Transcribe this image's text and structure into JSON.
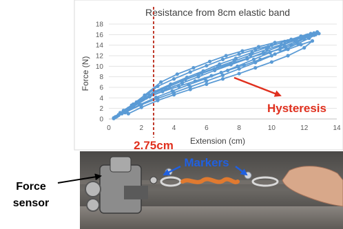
{
  "chart_data": {
    "type": "scatter",
    "title": "Resistance from 8cm elastic band",
    "xlabel": "Extension (cm)",
    "ylabel": "Force (N)",
    "xlim": [
      0,
      14
    ],
    "ylim": [
      0,
      18
    ],
    "xticks": [
      0,
      2,
      4,
      6,
      8,
      10,
      12,
      14
    ],
    "yticks": [
      0,
      2,
      4,
      6,
      8,
      10,
      12,
      14,
      16,
      18
    ],
    "grid": "horizontal",
    "marker_color": "#5b9bd5",
    "reference_line": {
      "x": 2.75,
      "label": "2.75cm",
      "color": "#c0392b"
    },
    "series": [
      {
        "x": [
          0.3,
          0.8,
          1.5,
          2.5,
          3.5,
          4.5,
          5.5,
          6.5,
          7.5,
          8.5,
          9.5,
          10.5,
          11.5,
          12.2,
          12.6,
          12.0,
          11.2,
          10.5,
          9.5,
          8.5,
          7.5,
          6.5,
          5.5,
          4.5,
          3.5,
          2.5,
          1.5,
          0.7,
          0.3
        ],
        "y": [
          0.1,
          1.0,
          2.3,
          4.2,
          5.6,
          6.8,
          8.0,
          9.2,
          10.3,
          11.4,
          12.6,
          13.8,
          15.0,
          15.9,
          16.3,
          15.2,
          14.0,
          13.2,
          12.4,
          11.5,
          10.5,
          9.5,
          8.4,
          7.2,
          5.9,
          4.5,
          2.8,
          1.2,
          0.2
        ]
      },
      {
        "x": [
          0.4,
          1.0,
          1.8,
          2.8,
          3.8,
          4.8,
          5.8,
          6.8,
          7.8,
          8.8,
          9.8,
          10.8,
          11.8,
          12.4,
          12.8,
          12.1,
          11.4,
          10.6,
          9.7,
          8.7,
          7.7,
          6.7,
          5.7,
          4.7,
          3.7,
          2.7,
          1.7,
          0.9,
          0.4
        ],
        "y": [
          0.3,
          1.5,
          3.0,
          5.2,
          6.6,
          7.9,
          9.1,
          10.4,
          11.5,
          12.6,
          13.7,
          14.7,
          15.7,
          16.2,
          16.5,
          15.8,
          14.9,
          14.1,
          13.2,
          12.1,
          11.0,
          9.9,
          8.7,
          7.5,
          6.2,
          4.8,
          3.2,
          1.6,
          0.4
        ]
      },
      {
        "x": [
          0.5,
          1.2,
          2.0,
          3.0,
          4.0,
          5.0,
          6.0,
          7.0,
          8.0,
          9.0,
          10.0,
          11.0,
          12.0,
          12.6,
          12.9,
          12.2,
          11.5,
          10.8,
          9.9,
          8.9,
          7.9,
          6.9,
          5.9,
          4.9,
          3.9,
          2.9,
          1.9,
          1.0,
          0.5
        ],
        "y": [
          0.5,
          2.0,
          3.7,
          6.2,
          7.6,
          8.9,
          10.1,
          11.3,
          12.3,
          13.2,
          14.0,
          14.8,
          15.4,
          15.9,
          16.2,
          15.6,
          14.7,
          13.8,
          12.6,
          11.3,
          10.0,
          8.8,
          7.6,
          6.5,
          5.3,
          4.1,
          2.7,
          1.2,
          0.5
        ]
      },
      {
        "x": [
          0.6,
          1.4,
          2.2,
          3.2,
          4.2,
          5.2,
          6.2,
          7.2,
          8.2,
          9.2,
          10.2,
          11.2,
          12.2,
          12.7,
          12.3,
          11.6,
          10.9,
          10.0,
          9.0,
          8.0,
          7.0,
          6.0,
          5.0,
          4.0,
          3.0,
          2.0,
          1.1,
          0.6
        ],
        "y": [
          0.8,
          2.6,
          4.5,
          7.0,
          8.5,
          9.7,
          10.9,
          12.0,
          12.9,
          13.7,
          14.5,
          15.1,
          15.7,
          16.0,
          15.3,
          14.3,
          13.3,
          12.0,
          10.7,
          9.5,
          8.3,
          7.2,
          6.1,
          5.0,
          3.9,
          2.7,
          1.4,
          0.7
        ]
      },
      {
        "x": [
          1.2,
          2.0,
          3.0,
          4.0,
          5.0,
          6.0,
          7.0,
          8.0,
          9.0,
          10.0,
          11.0,
          12.0,
          12.5,
          11.8,
          11.0,
          10.2,
          9.3,
          8.3,
          7.3,
          6.3,
          5.3,
          4.3,
          3.3,
          2.3,
          1.5,
          1.0
        ],
        "y": [
          1.0,
          2.2,
          3.5,
          4.6,
          5.6,
          6.6,
          7.6,
          8.6,
          9.7,
          10.8,
          12.0,
          13.5,
          14.8,
          14.1,
          13.2,
          12.3,
          11.3,
          10.2,
          9.2,
          8.2,
          7.2,
          6.2,
          5.2,
          4.0,
          2.6,
          1.6
        ]
      }
    ],
    "annotations": [
      {
        "text": "Hysteresis",
        "color": "#e0301e"
      }
    ]
  },
  "photo_labels": {
    "markers": "Markers",
    "force": "Force",
    "sensor": "sensor"
  }
}
